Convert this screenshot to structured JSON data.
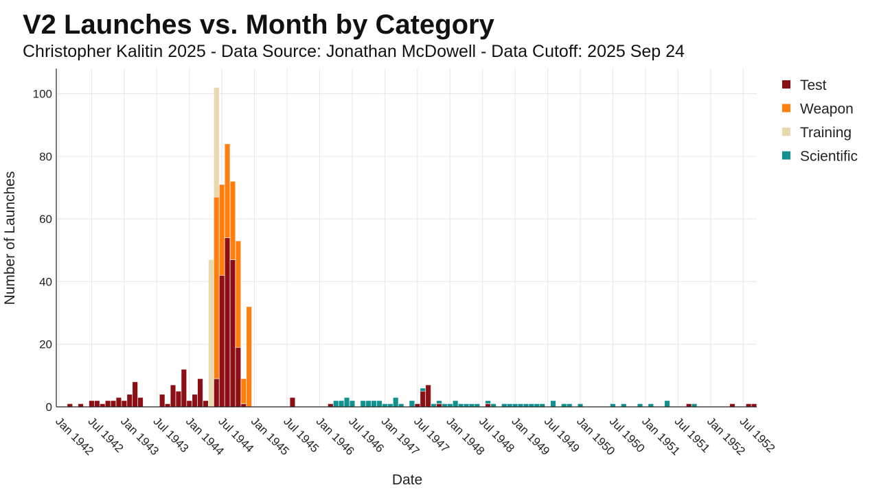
{
  "header": {
    "title": "V2 Launches vs. Month by Category",
    "subtitle": "Christopher Kalitin 2025 - Data Source: Jonathan McDowell - Data Cutoff: 2025 Sep 24"
  },
  "chart_data": {
    "type": "bar",
    "stacked": true,
    "xlabel": "Date",
    "ylabel": "Number of Launches",
    "ylim": [
      0,
      108
    ],
    "y_ticks": [
      0,
      20,
      40,
      60,
      80,
      100
    ],
    "x_start": "1942-01",
    "x_end": "1952-09",
    "x_ticks": [
      "Jan 1942",
      "Jul 1942",
      "Jan 1943",
      "Jul 1943",
      "Jan 1944",
      "Jul 1944",
      "Jan 1945",
      "Jul 1945",
      "Jan 1946",
      "Jul 1946",
      "Jan 1947",
      "Jul 1947",
      "Jan 1948",
      "Jul 1948",
      "Jan 1949",
      "Jul 1949",
      "Jan 1950",
      "Jul 1950",
      "Jan 1951",
      "Jul 1951",
      "Jan 1952",
      "Jul 1952"
    ],
    "grid": true,
    "legend_position": "top-right",
    "series": [
      {
        "name": "Test",
        "color": "#8b0f14",
        "data": [
          [
            "1942-03",
            1
          ],
          [
            "1942-05",
            1
          ],
          [
            "1942-07",
            2
          ],
          [
            "1942-08",
            2
          ],
          [
            "1942-09",
            1
          ],
          [
            "1942-10",
            2
          ],
          [
            "1942-11",
            2
          ],
          [
            "1942-12",
            3
          ],
          [
            "1943-01",
            2
          ],
          [
            "1943-02",
            4
          ],
          [
            "1943-03",
            8
          ],
          [
            "1943-04",
            3
          ],
          [
            "1943-08",
            4
          ],
          [
            "1943-09",
            1
          ],
          [
            "1943-10",
            7
          ],
          [
            "1943-11",
            5
          ],
          [
            "1943-12",
            12
          ],
          [
            "1944-01",
            2
          ],
          [
            "1944-02",
            4
          ],
          [
            "1944-03",
            9
          ],
          [
            "1944-04",
            2
          ],
          [
            "1944-06",
            9
          ],
          [
            "1944-07",
            42
          ],
          [
            "1944-08",
            54
          ],
          [
            "1944-09",
            47
          ],
          [
            "1944-10",
            19
          ],
          [
            "1944-11",
            1
          ],
          [
            "1945-08",
            3
          ],
          [
            "1946-03",
            1
          ],
          [
            "1947-07",
            1
          ],
          [
            "1947-08",
            5
          ],
          [
            "1947-09",
            7
          ],
          [
            "1947-11",
            1
          ],
          [
            "1948-08",
            1
          ],
          [
            "1951-09",
            1
          ],
          [
            "1952-05",
            1
          ],
          [
            "1952-08",
            1
          ],
          [
            "1952-09",
            1
          ]
        ]
      },
      {
        "name": "Weapon",
        "color": "#ff7f0e",
        "data": [
          [
            "1944-06",
            58
          ],
          [
            "1944-07",
            29
          ],
          [
            "1944-08",
            30
          ],
          [
            "1944-09",
            25
          ],
          [
            "1944-10",
            34
          ],
          [
            "1944-11",
            8
          ],
          [
            "1944-12",
            32
          ]
        ]
      },
      {
        "name": "Training",
        "color": "#e8d8ae",
        "data": [
          [
            "1944-05",
            47
          ],
          [
            "1944-06",
            35
          ]
        ]
      },
      {
        "name": "Scientific",
        "color": "#13918f",
        "data": [
          [
            "1946-04",
            2
          ],
          [
            "1946-05",
            2
          ],
          [
            "1946-06",
            3
          ],
          [
            "1946-07",
            2
          ],
          [
            "1946-09",
            2
          ],
          [
            "1946-10",
            2
          ],
          [
            "1946-11",
            2
          ],
          [
            "1946-12",
            2
          ],
          [
            "1947-01",
            1
          ],
          [
            "1947-02",
            1
          ],
          [
            "1947-03",
            3
          ],
          [
            "1947-04",
            1
          ],
          [
            "1947-06",
            2
          ],
          [
            "1947-08",
            1
          ],
          [
            "1947-10",
            1
          ],
          [
            "1947-11",
            1
          ],
          [
            "1947-12",
            1
          ],
          [
            "1948-01",
            1
          ],
          [
            "1948-02",
            2
          ],
          [
            "1948-03",
            1
          ],
          [
            "1948-04",
            1
          ],
          [
            "1948-05",
            1
          ],
          [
            "1948-06",
            1
          ],
          [
            "1948-08",
            1
          ],
          [
            "1948-09",
            1
          ],
          [
            "1948-11",
            1
          ],
          [
            "1948-12",
            1
          ],
          [
            "1949-01",
            1
          ],
          [
            "1949-02",
            1
          ],
          [
            "1949-03",
            1
          ],
          [
            "1949-04",
            1
          ],
          [
            "1949-05",
            1
          ],
          [
            "1949-06",
            1
          ],
          [
            "1949-08",
            2
          ],
          [
            "1949-10",
            1
          ],
          [
            "1949-11",
            1
          ],
          [
            "1950-01",
            1
          ],
          [
            "1950-07",
            1
          ],
          [
            "1950-09",
            1
          ],
          [
            "1950-12",
            1
          ],
          [
            "1951-02",
            1
          ],
          [
            "1951-05",
            2
          ],
          [
            "1951-10",
            1
          ]
        ]
      }
    ]
  }
}
